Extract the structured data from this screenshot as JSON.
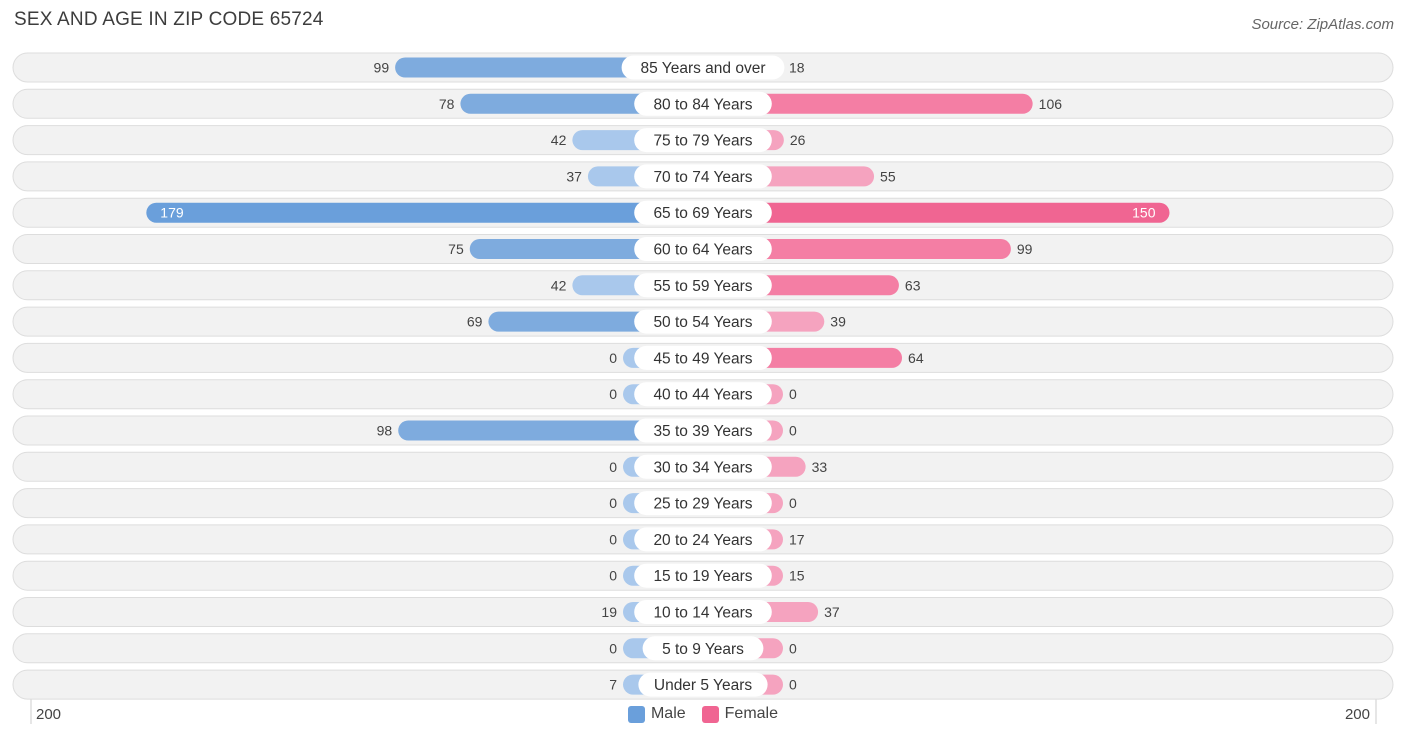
{
  "header": {
    "title": "SEX AND AGE IN ZIP CODE 65724",
    "source": "Source: ZipAtlas.com"
  },
  "axis": {
    "left_label": "200",
    "right_label": "200"
  },
  "legend": {
    "male_label": "Male",
    "female_label": "Female"
  },
  "colors": {
    "male": "#6a9fdb",
    "male_light": "#a9c8ec",
    "female": "#f06592",
    "female_light": "#f5a3bf",
    "row_bg": "#f2f2f2",
    "row_border": "#dddddd"
  },
  "chart_data": {
    "type": "bar",
    "orientation": "horizontal-diverging",
    "title": "SEX AND AGE IN ZIP CODE 65724",
    "xlim": [
      -200,
      200
    ],
    "categories": [
      "85 Years and over",
      "80 to 84 Years",
      "75 to 79 Years",
      "70 to 74 Years",
      "65 to 69 Years",
      "60 to 64 Years",
      "55 to 59 Years",
      "50 to 54 Years",
      "45 to 49 Years",
      "40 to 44 Years",
      "35 to 39 Years",
      "30 to 34 Years",
      "25 to 29 Years",
      "20 to 24 Years",
      "15 to 19 Years",
      "10 to 14 Years",
      "5 to 9 Years",
      "Under 5 Years"
    ],
    "series": [
      {
        "name": "Male",
        "values": [
          99,
          78,
          42,
          37,
          179,
          75,
          42,
          69,
          0,
          0,
          98,
          0,
          0,
          0,
          0,
          19,
          0,
          7
        ]
      },
      {
        "name": "Female",
        "values": [
          18,
          106,
          26,
          55,
          150,
          99,
          63,
          39,
          64,
          0,
          0,
          33,
          0,
          17,
          15,
          37,
          0,
          0
        ]
      }
    ],
    "legend": "bottom-center"
  }
}
